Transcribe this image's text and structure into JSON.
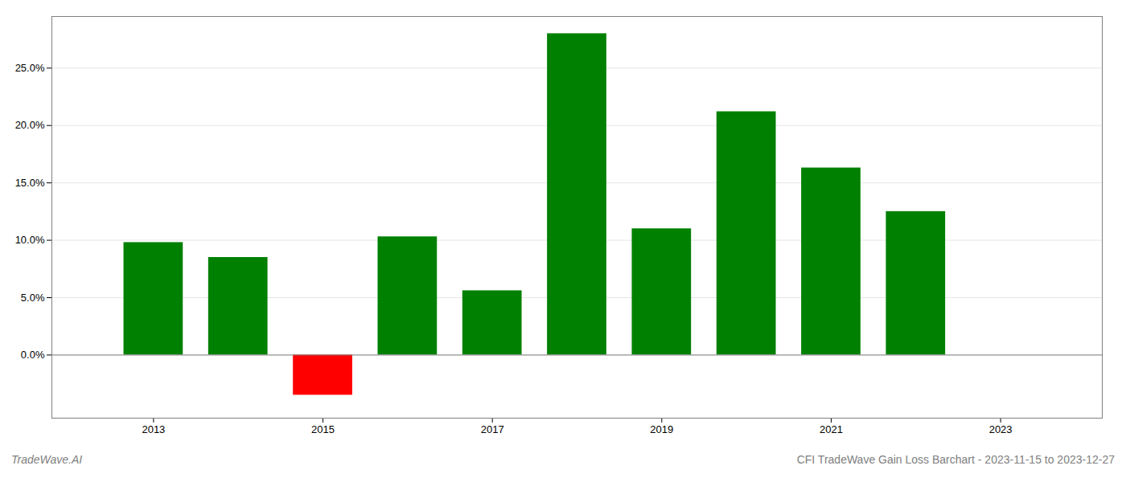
{
  "chart_data": {
    "type": "bar",
    "title": "CFI TradeWave Gain Loss Barchart - 2023-11-15 to 2023-12-27",
    "annotations": [
      {
        "text": "TradeWave.AI"
      }
    ],
    "x": [
      2013,
      2014,
      2015,
      2016,
      2017,
      2018,
      2019,
      2020,
      2021,
      2022
    ],
    "values": [
      0.098,
      0.085,
      -0.035,
      0.103,
      0.056,
      0.28,
      0.11,
      0.212,
      0.163,
      0.125
    ],
    "colors": [
      "#008000",
      "#008000",
      "#ff0000",
      "#008000",
      "#008000",
      "#008000",
      "#008000",
      "#008000",
      "#008000",
      "#008000"
    ],
    "xlim": [
      2011.8,
      2024.2
    ],
    "xticks": [
      2013,
      2015,
      2017,
      2019,
      2021,
      2023
    ],
    "ylim": [
      -0.055,
      0.295
    ],
    "yticks": [
      {
        "value": 0.0,
        "label": "0.0%"
      },
      {
        "value": 0.05,
        "label": "5.0%"
      },
      {
        "value": 0.1,
        "label": "10.0%"
      },
      {
        "value": 0.15,
        "label": "15.0%"
      },
      {
        "value": 0.2,
        "label": "20.0%"
      },
      {
        "value": 0.25,
        "label": "25.0%"
      }
    ],
    "grid": true
  }
}
